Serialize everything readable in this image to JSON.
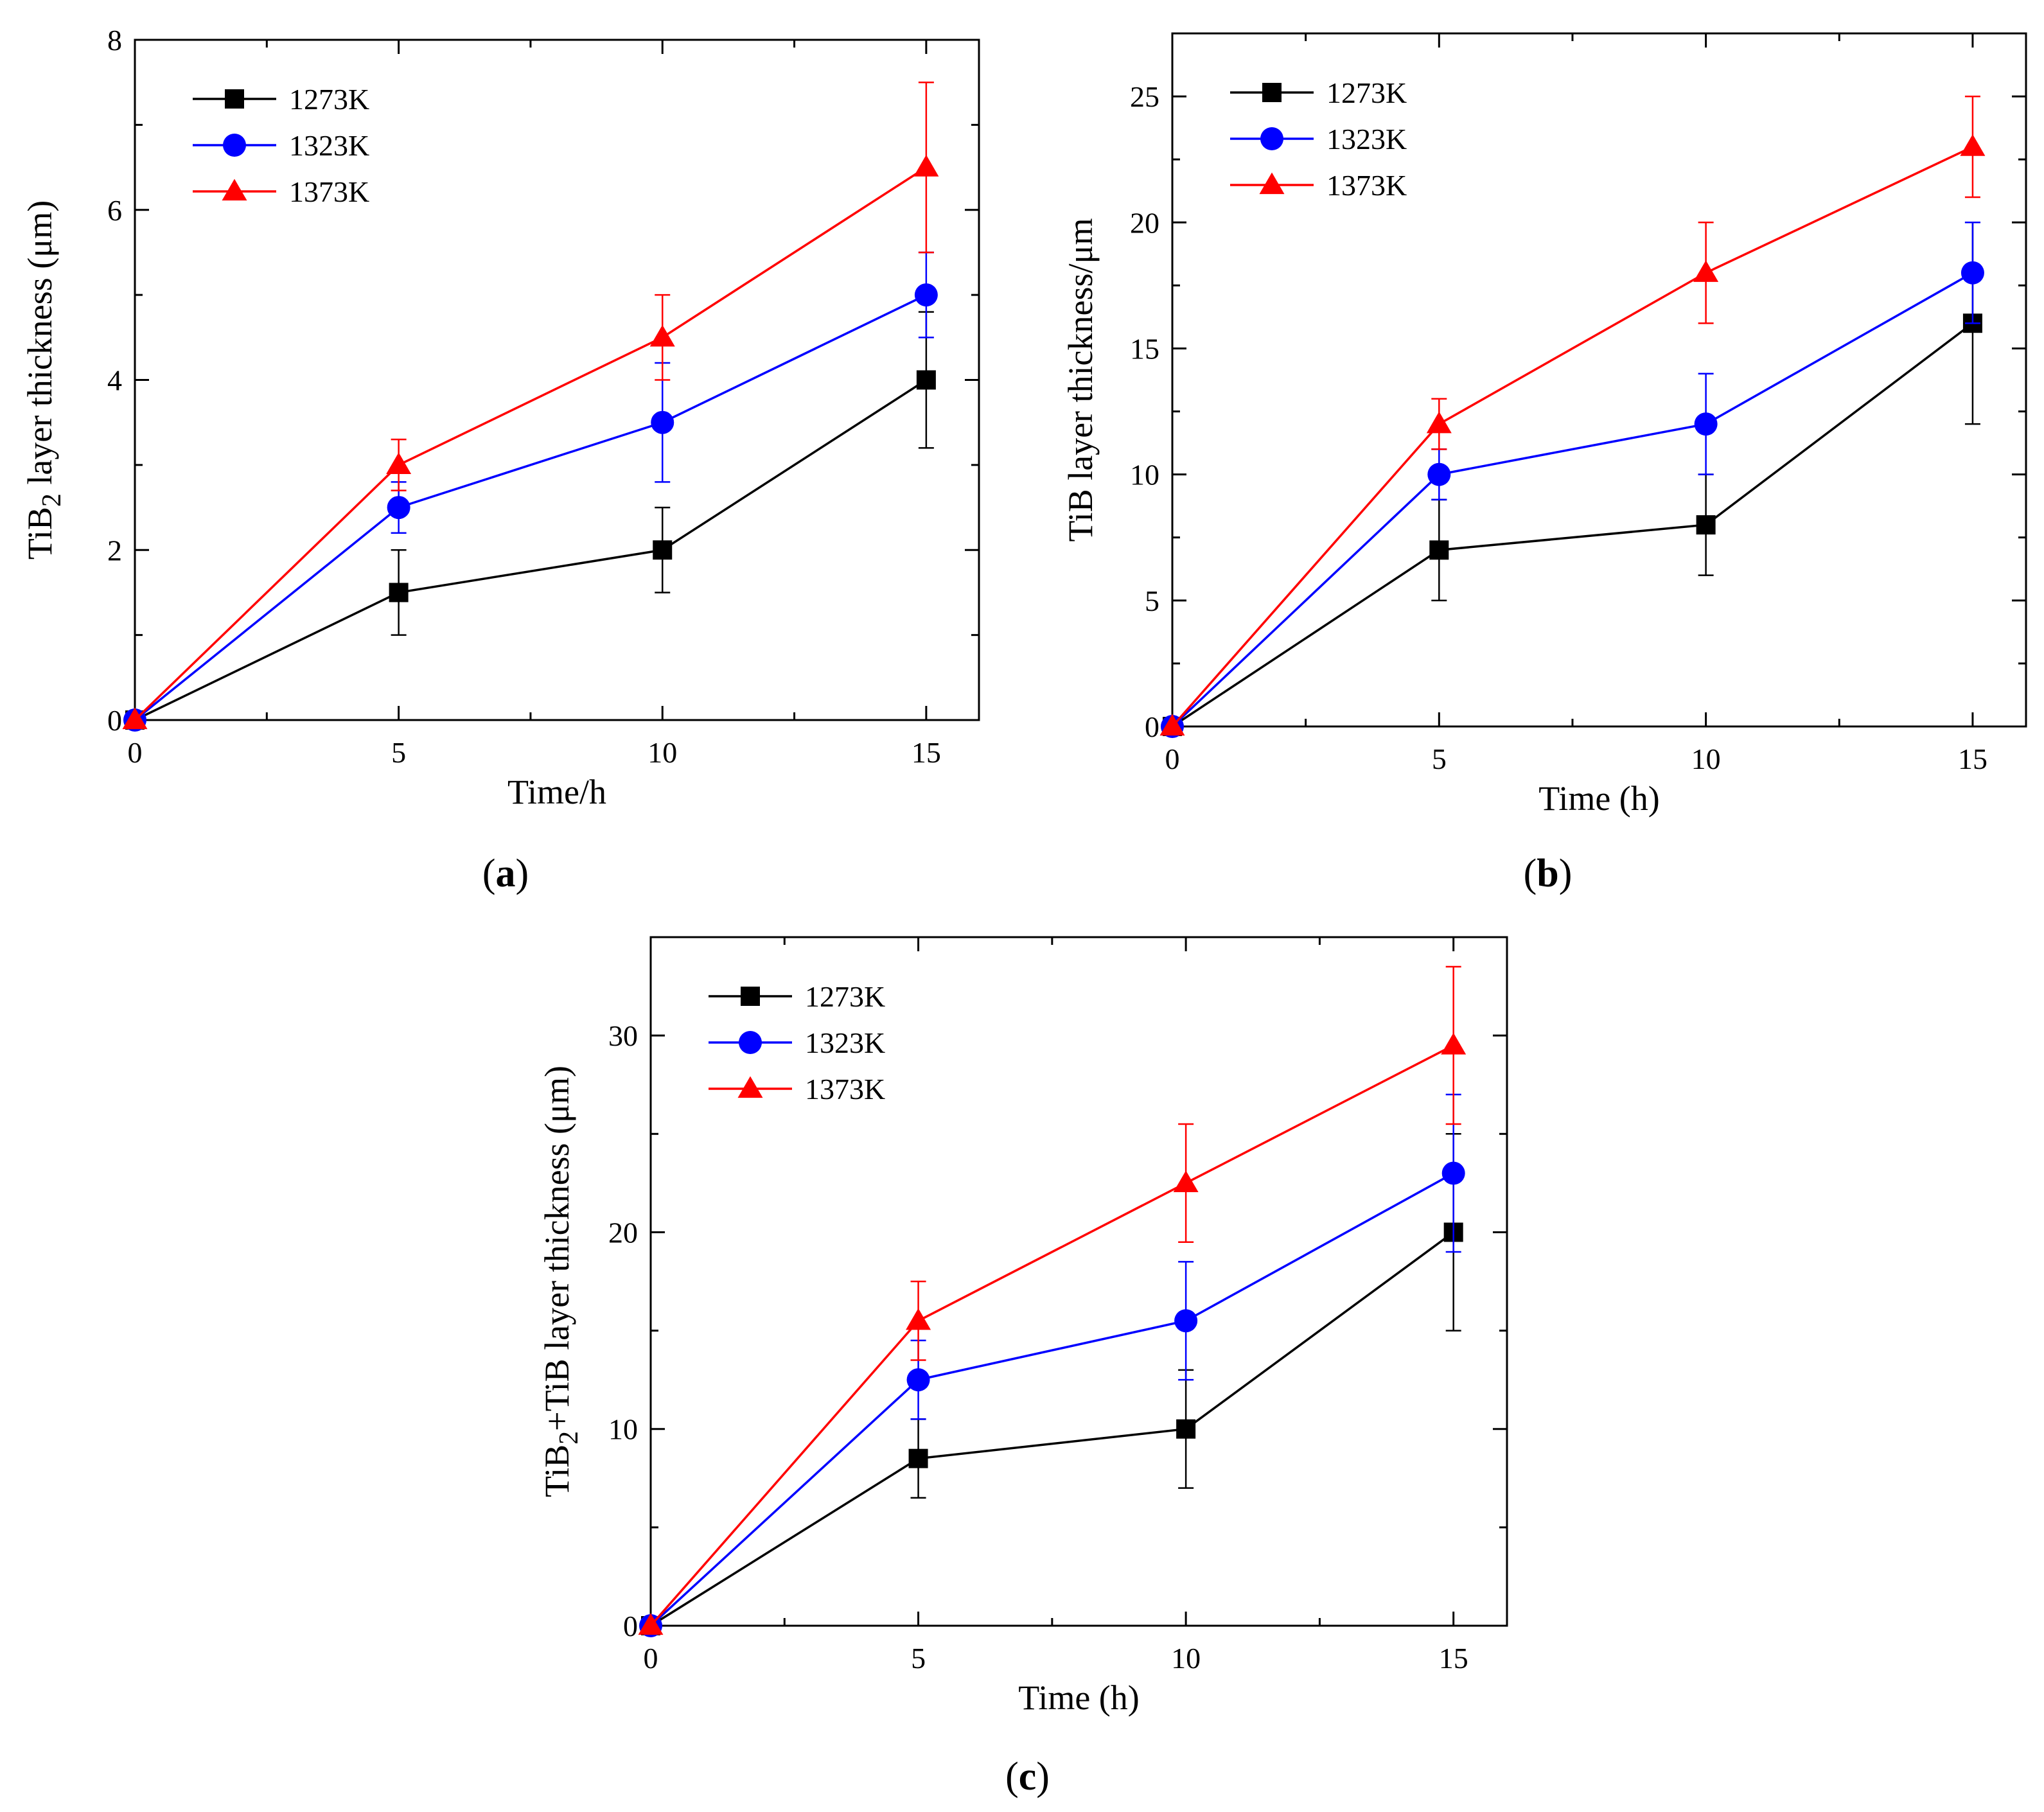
{
  "chart_data": [
    {
      "type": "line",
      "panel_label": "a",
      "xlabel": "Time/h",
      "ylabel": "TiB",
      "ylabel_sub": "2",
      "ylabel_rest": " layer thickness (μm)",
      "xlim": [
        0,
        16
      ],
      "ylim": [
        0,
        8
      ],
      "xticks": [
        0,
        5,
        10,
        15
      ],
      "yticks": [
        0,
        2,
        4,
        6,
        8
      ],
      "categories": [
        0,
        5,
        10,
        15
      ],
      "legend_position": "top-left",
      "series": [
        {
          "name": "1273K",
          "color": "#000000",
          "marker": "square",
          "values": [
            0,
            1.5,
            2.0,
            4.0
          ],
          "errors": [
            0,
            0.5,
            0.5,
            0.8
          ]
        },
        {
          "name": "1323K",
          "color": "#0000ff",
          "marker": "circle",
          "values": [
            0,
            2.5,
            3.5,
            5.0
          ],
          "errors": [
            0,
            0.3,
            0.7,
            0.5
          ]
        },
        {
          "name": "1373K",
          "color": "#ff0000",
          "marker": "triangle",
          "values": [
            0,
            3.0,
            4.5,
            6.5
          ],
          "errors": [
            0,
            0.3,
            0.5,
            1.0
          ]
        }
      ]
    },
    {
      "type": "line",
      "panel_label": "b",
      "xlabel": "Time (h)",
      "ylabel": "TiB layer thickness/μm",
      "ylabel_sub": "",
      "ylabel_rest": "",
      "xlim": [
        0,
        16
      ],
      "ylim": [
        0,
        27.5
      ],
      "xticks": [
        0,
        5,
        10,
        15
      ],
      "yticks": [
        0,
        5,
        10,
        15,
        20,
        25
      ],
      "categories": [
        0,
        5,
        10,
        15
      ],
      "legend_position": "top-left",
      "series": [
        {
          "name": "1273K",
          "color": "#000000",
          "marker": "square",
          "values": [
            0,
            7,
            8,
            16
          ],
          "errors": [
            0,
            2,
            2,
            4
          ]
        },
        {
          "name": "1323K",
          "color": "#0000ff",
          "marker": "circle",
          "values": [
            0,
            10,
            12,
            18
          ],
          "errors": [
            0,
            1,
            2,
            2
          ]
        },
        {
          "name": "1373K",
          "color": "#ff0000",
          "marker": "triangle",
          "values": [
            0,
            12,
            18,
            23
          ],
          "errors": [
            0,
            1,
            2,
            2
          ]
        }
      ]
    },
    {
      "type": "line",
      "panel_label": "c",
      "xlabel": "Time (h)",
      "ylabel": "TiB",
      "ylabel_sub": "2",
      "ylabel_rest": "+TiB layer thickness (μm)",
      "xlim": [
        0,
        16
      ],
      "ylim": [
        0,
        35
      ],
      "xticks": [
        0,
        5,
        10,
        15
      ],
      "yticks": [
        0,
        10,
        20,
        30
      ],
      "categories": [
        0,
        5,
        10,
        15
      ],
      "legend_position": "top-left",
      "series": [
        {
          "name": "1273K",
          "color": "#000000",
          "marker": "square",
          "values": [
            0,
            8.5,
            10,
            20
          ],
          "errors": [
            0,
            2,
            3,
            5
          ]
        },
        {
          "name": "1323K",
          "color": "#0000ff",
          "marker": "circle",
          "values": [
            0,
            12.5,
            15.5,
            23
          ],
          "errors": [
            0,
            2,
            3,
            4
          ]
        },
        {
          "name": "1373K",
          "color": "#ff0000",
          "marker": "triangle",
          "values": [
            0,
            15.5,
            22.5,
            29.5
          ],
          "errors": [
            0,
            2,
            3,
            4
          ]
        }
      ]
    }
  ]
}
